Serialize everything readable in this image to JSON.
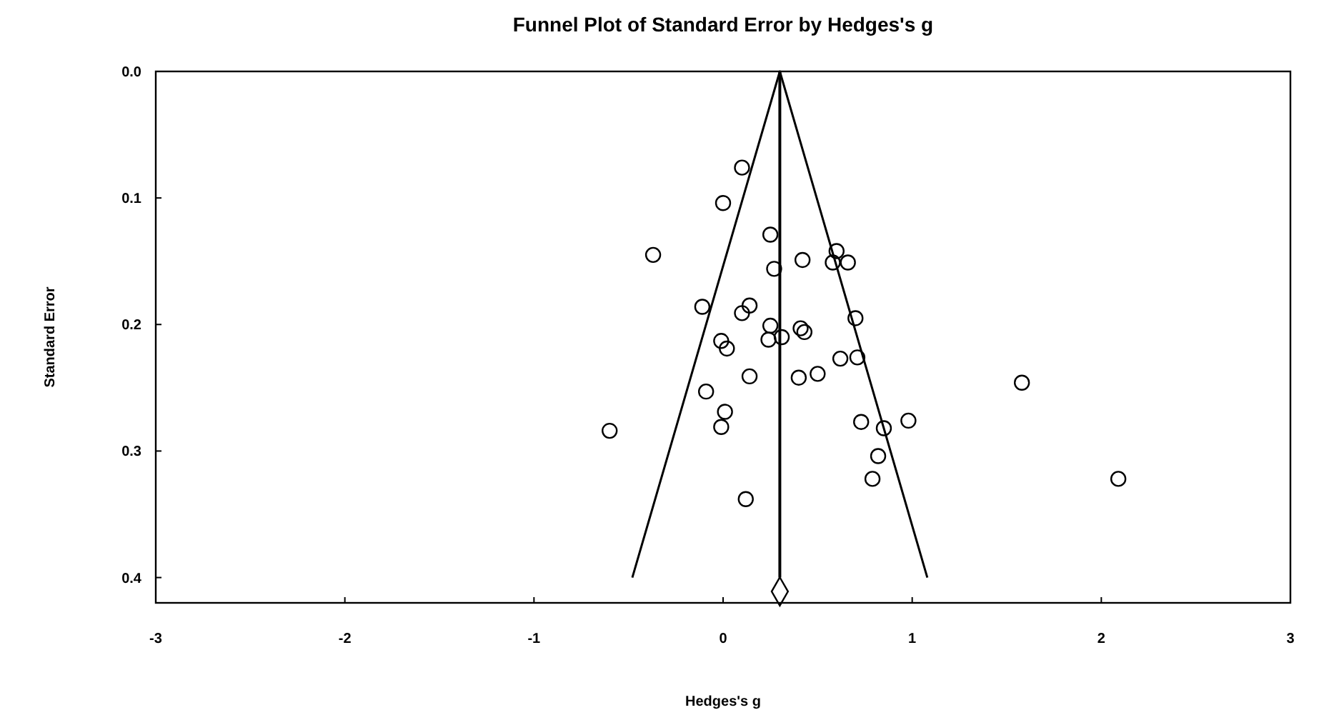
{
  "chart_data": {
    "type": "scatter",
    "title": "Funnel Plot of Standard Error by Hedges's g",
    "xlabel": "Hedges's g",
    "ylabel": "Standard Error",
    "xlim": [
      -3,
      3
    ],
    "xticks": [
      -3,
      -2,
      -1,
      0,
      1,
      2,
      3
    ],
    "ylim": [
      0.42,
      0
    ],
    "yticks": [
      {
        "value": 0,
        "label": "0.0"
      },
      {
        "value": 0.1,
        "label": "0.1"
      },
      {
        "value": 0.2,
        "label": "0.2"
      },
      {
        "value": 0.3,
        "label": "0.3"
      },
      {
        "value": 0.4,
        "label": "0.4"
      }
    ],
    "grid": false,
    "ref_lines": [
      {
        "axis": "x",
        "value": 0.3,
        "color": "#000000"
      }
    ],
    "series": [
      {
        "marker": "circle",
        "color": "#000000",
        "x": [
          0.1,
          0.0,
          -0.37,
          0.25,
          0.27,
          0.42,
          0.6,
          0.58,
          0.66,
          -0.11,
          0.14,
          0.1,
          0.7,
          0.25,
          0.41,
          0.43,
          -0.01,
          0.02,
          0.24,
          0.31,
          0.14,
          -0.09,
          0.01,
          -0.01,
          -0.6,
          0.4,
          0.5,
          0.62,
          0.71,
          0.73,
          0.85,
          0.98,
          0.82,
          0.79,
          0.12,
          1.58,
          2.09
        ],
        "values": [
          0.076,
          0.104,
          0.145,
          0.129,
          0.156,
          0.149,
          0.142,
          0.151,
          0.151,
          0.186,
          0.185,
          0.191,
          0.195,
          0.201,
          0.203,
          0.206,
          0.213,
          0.219,
          0.212,
          0.21,
          0.241,
          0.253,
          0.269,
          0.281,
          0.284,
          0.242,
          0.239,
          0.227,
          0.226,
          0.277,
          0.282,
          0.276,
          0.304,
          0.322,
          0.338,
          0.246,
          0.322
        ]
      },
      {
        "type": "line",
        "marker": "none",
        "color": "#000000",
        "x": [
          -0.48,
          0.3,
          1.08
        ],
        "values": [
          0.4,
          0,
          0.4
        ]
      },
      {
        "marker": "diamond",
        "color": "#000000",
        "x": [
          0.3
        ],
        "values": [
          0.411
        ]
      }
    ]
  }
}
